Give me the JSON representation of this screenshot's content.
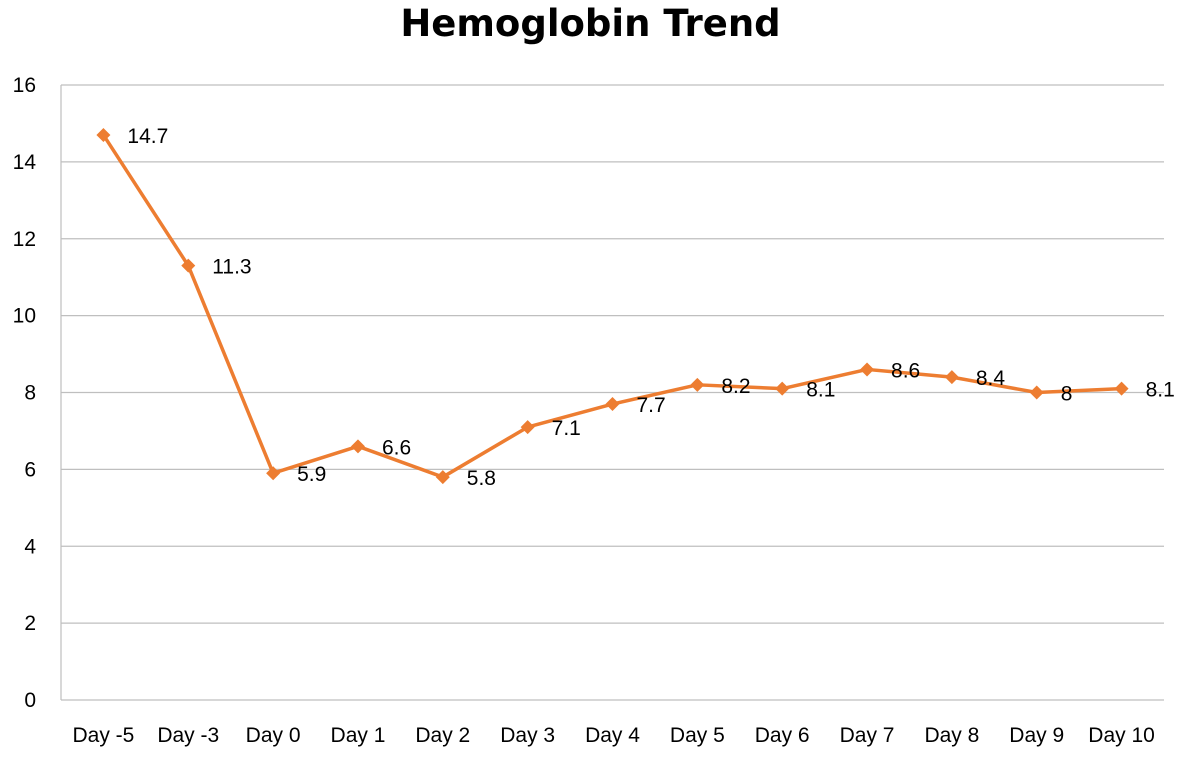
{
  "chart_data": {
    "type": "line",
    "title": "Hemoglobin Trend",
    "xlabel": "",
    "ylabel": "",
    "categories": [
      "Day -5",
      "Day -3",
      "Day 0",
      "Day 1",
      "Day 2",
      "Day 3",
      "Day 4",
      "Day 5",
      "Day 6",
      "Day 7",
      "Day 8",
      "Day 9",
      "Day 10"
    ],
    "series": [
      {
        "values": [
          14.7,
          11.3,
          5.9,
          6.6,
          5.8,
          7.1,
          7.7,
          8.2,
          8.1,
          8.6,
          8.4,
          8,
          8.1
        ],
        "data_labels": [
          "14.7",
          "11.3",
          "5.9",
          "6.6",
          "5.8",
          "7.1",
          "7.7",
          "8.2",
          "8.1",
          "8.6",
          "8.4",
          "8",
          "8.1"
        ],
        "color": "#ED7D31",
        "marker": "diamond"
      }
    ],
    "ylim": [
      0,
      16
    ],
    "yticks": [
      "0",
      "2",
      "4",
      "6",
      "8",
      "10",
      "12",
      "14",
      "16"
    ],
    "grid": true,
    "legend": "none",
    "colors": {
      "line": "#ED7D31",
      "grid": "#BFBFBF",
      "axis": "#BFBFBF"
    }
  }
}
